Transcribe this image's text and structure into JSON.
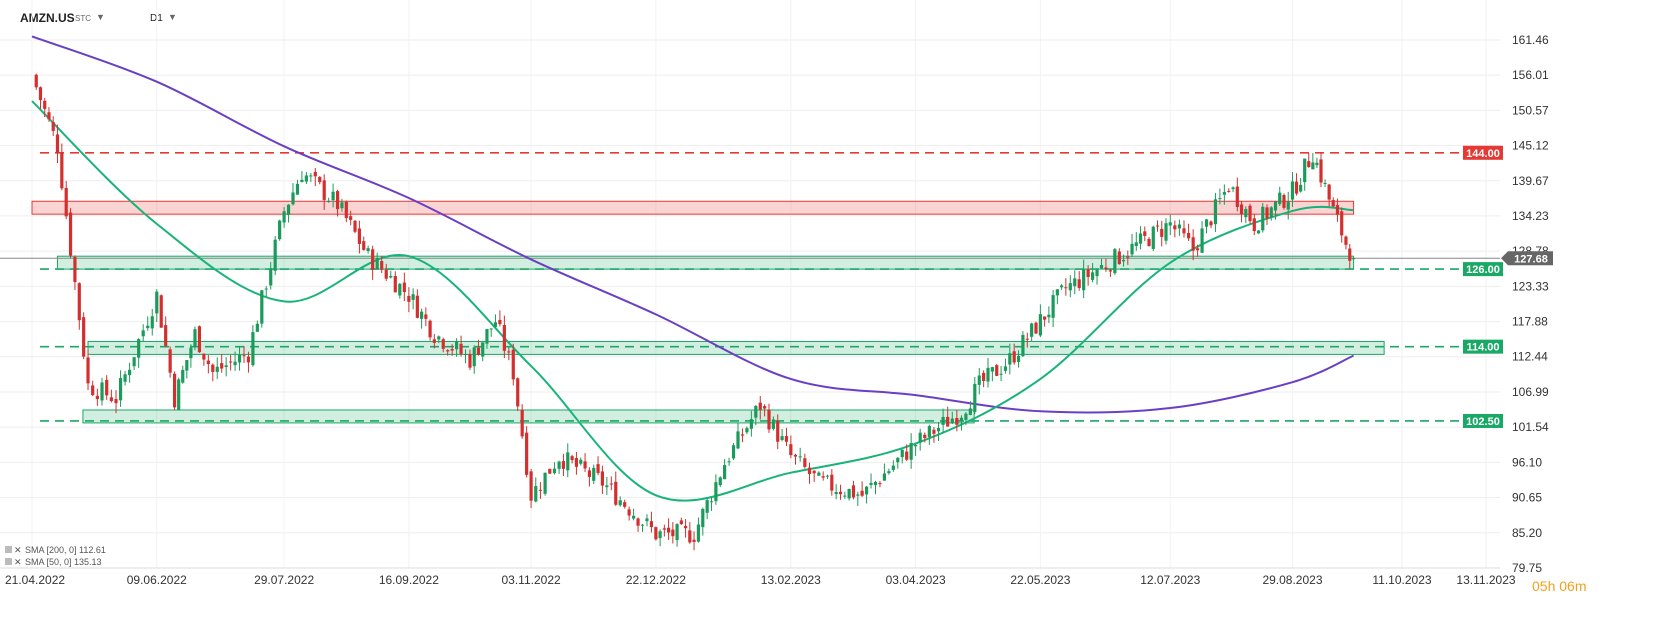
{
  "toolbar": {
    "symbol": "AMZN.US",
    "exchange": "STC",
    "interval": "D1"
  },
  "timer": "05h 06m",
  "colors": {
    "up": "#1b9b5b",
    "down": "#d32f2f",
    "sma200": "#6a3fc4",
    "sma50": "#19b37a",
    "resistance": "#e53935",
    "support": "#1aa866",
    "current": "#666666"
  },
  "chart_data": {
    "type": "candlestick",
    "symbol": "AMZN.US",
    "interval": "D1",
    "ylim": [
      79.75,
      163
    ],
    "y_ticks": [
      161.46,
      156.01,
      150.57,
      145.12,
      139.67,
      134.23,
      128.78,
      123.33,
      117.88,
      112.44,
      106.99,
      101.54,
      96.1,
      90.65,
      85.2,
      79.75
    ],
    "x_ticks": [
      "21.04.2022",
      "09.06.2022",
      "29.07.2022",
      "16.09.2022",
      "03.11.2022",
      "22.12.2022",
      "13.02.2023",
      "03.04.2023",
      "22.05.2023",
      "12.07.2023",
      "29.08.2023",
      "11.10.2023",
      "13.11.2023"
    ],
    "current_price": 127.68,
    "levels": [
      {
        "value": 144.0,
        "label": "144.00",
        "kind": "resistance"
      },
      {
        "value": 126.0,
        "label": "126.00",
        "kind": "support"
      },
      {
        "value": 114.0,
        "label": "114.00",
        "kind": "support"
      },
      {
        "value": 102.5,
        "label": "102.50",
        "kind": "support"
      }
    ],
    "zones": [
      {
        "low": 134.5,
        "high": 136.5,
        "start": "21.04.2022",
        "end": "22.09.2023",
        "kind": "resistance"
      },
      {
        "low": 126.0,
        "high": 128.0,
        "start": "01.05.2022",
        "end": "22.09.2023",
        "kind": "support"
      },
      {
        "low": 112.8,
        "high": 114.8,
        "start": "13.05.2022",
        "end": "04.10.2023",
        "kind": "support"
      },
      {
        "low": 102.2,
        "high": 104.2,
        "start": "11.05.2022",
        "end": "26.04.2023",
        "kind": "support"
      }
    ],
    "indicators": [
      {
        "name": "SMA",
        "params": "[200, 0]",
        "value": "112.61",
        "points": [
          [
            "21.04.2022",
            162
          ],
          [
            "09.06.2022",
            155
          ],
          [
            "29.07.2022",
            145
          ],
          [
            "16.09.2022",
            137
          ],
          [
            "03.11.2022",
            127.5
          ],
          [
            "22.12.2022",
            119
          ],
          [
            "13.02.2023",
            109
          ],
          [
            "03.04.2023",
            106.5
          ],
          [
            "22.05.2023",
            104
          ],
          [
            "12.07.2023",
            104.5
          ],
          [
            "29.08.2023",
            108.5
          ],
          [
            "22.09.2023",
            112.61
          ]
        ]
      },
      {
        "name": "SMA",
        "params": "[50, 0]",
        "value": "135.13",
        "points": [
          [
            "21.04.2022",
            152
          ],
          [
            "09.06.2022",
            133
          ],
          [
            "29.07.2022",
            121
          ],
          [
            "16.09.2022",
            128
          ],
          [
            "03.11.2022",
            111
          ],
          [
            "22.12.2022",
            91
          ],
          [
            "13.02.2023",
            94.5
          ],
          [
            "03.04.2023",
            99
          ],
          [
            "22.05.2023",
            109
          ],
          [
            "12.07.2023",
            127
          ],
          [
            "29.08.2023",
            135
          ],
          [
            "22.09.2023",
            135.13
          ]
        ]
      }
    ],
    "price_path": [
      [
        "21.04.2022",
        156
      ],
      [
        "01.05.2022",
        145
      ],
      [
        "13.05.2022",
        108
      ],
      [
        "24.05.2022",
        106
      ],
      [
        "09.06.2022",
        122
      ],
      [
        "16.06.2022",
        106
      ],
      [
        "24.06.2022",
        116
      ],
      [
        "01.07.2022",
        110
      ],
      [
        "15.07.2022",
        113
      ],
      [
        "29.07.2022",
        135
      ],
      [
        "05.08.2022",
        141
      ],
      [
        "19.08.2022",
        136
      ],
      [
        "31.08.2022",
        128
      ],
      [
        "16.09.2022",
        122
      ],
      [
        "26.09.2022",
        116
      ],
      [
        "10.10.2022",
        112
      ],
      [
        "20.10.2022",
        118
      ],
      [
        "27.10.2022",
        110
      ],
      [
        "03.11.2022",
        91
      ],
      [
        "14.11.2022",
        97
      ],
      [
        "01.12.2022",
        93
      ],
      [
        "22.12.2022",
        85
      ],
      [
        "06.01.2023",
        85
      ],
      [
        "18.01.2023",
        96
      ],
      [
        "01.02.2023",
        105
      ],
      [
        "13.02.2023",
        97
      ],
      [
        "24.02.2023",
        93
      ],
      [
        "13.03.2023",
        91
      ],
      [
        "03.04.2023",
        99
      ],
      [
        "21.04.2023",
        104
      ],
      [
        "28.04.2023",
        108
      ],
      [
        "10.05.2023",
        112
      ],
      [
        "22.05.2023",
        118
      ],
      [
        "01.06.2023",
        123
      ],
      [
        "22.06.2023",
        128
      ],
      [
        "12.07.2023",
        133
      ],
      [
        "21.07.2023",
        129
      ],
      [
        "04.08.2023",
        139
      ],
      [
        "14.08.2023",
        133
      ],
      [
        "29.08.2023",
        138
      ],
      [
        "06.09.2023",
        144
      ],
      [
        "14.09.2023",
        135
      ],
      [
        "19.09.2023",
        130
      ],
      [
        "22.09.2023",
        127.68
      ]
    ]
  }
}
